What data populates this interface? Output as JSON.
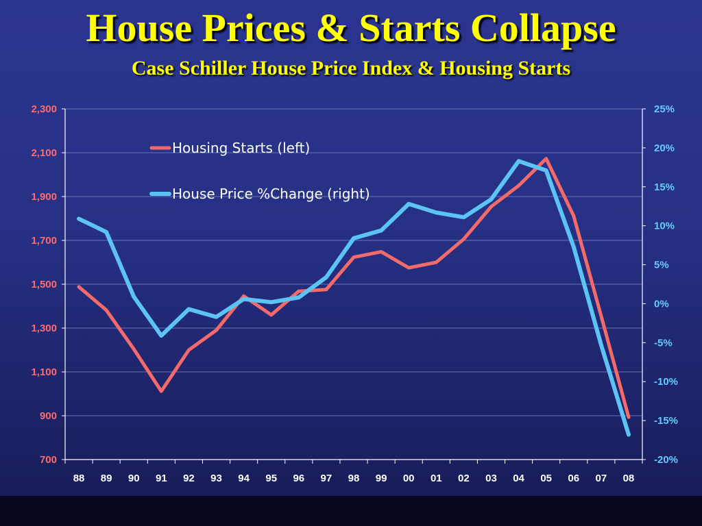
{
  "page": {
    "title": "House Prices & Starts Collapse",
    "subtitle": "Case Schiller House Price Index & Housing Starts"
  },
  "chart_data": {
    "type": "line",
    "categories": [
      "88",
      "89",
      "90",
      "91",
      "92",
      "93",
      "94",
      "95",
      "96",
      "97",
      "98",
      "99",
      "00",
      "01",
      "02",
      "03",
      "04",
      "05",
      "06",
      "07",
      "08"
    ],
    "y_left": {
      "lim": [
        700,
        2300
      ],
      "ticks": [
        700,
        900,
        1100,
        1300,
        1500,
        1700,
        1900,
        2100,
        2300
      ],
      "tick_labels": [
        "700",
        "900",
        "1,100",
        "1,300",
        "1,500",
        "1,700",
        "1,900",
        "2,100",
        "2,300"
      ],
      "color": "#ff6b6b"
    },
    "y_right": {
      "lim": [
        -20,
        25
      ],
      "ticks": [
        -20,
        -15,
        -10,
        -5,
        0,
        5,
        10,
        15,
        20,
        25
      ],
      "tick_labels": [
        "-20%",
        "-15%",
        "-10%",
        "-5%",
        "0%",
        "5%",
        "10%",
        "15%",
        "20%",
        "25%"
      ],
      "color": "#66ccff"
    },
    "series": [
      {
        "name": "Housing Starts (left)",
        "axis": "left",
        "color": "#f26a6a",
        "values": [
          1488,
          1382,
          1204,
          1012,
          1200,
          1290,
          1446,
          1360,
          1468,
          1476,
          1623,
          1648,
          1575,
          1600,
          1706,
          1854,
          1950,
          2073,
          1812,
          1355,
          893
        ]
      },
      {
        "name": "House Price %Change (right)",
        "axis": "right",
        "color": "#5cc4f5",
        "values": [
          10.9,
          9.2,
          0.9,
          -4.1,
          -0.7,
          -1.7,
          0.6,
          0.2,
          0.8,
          3.4,
          8.4,
          9.4,
          12.8,
          11.7,
          11.1,
          13.4,
          18.3,
          17.1,
          7.3,
          -5.3,
          -16.8
        ]
      }
    ],
    "legend_position": "top-left",
    "grid": true
  }
}
